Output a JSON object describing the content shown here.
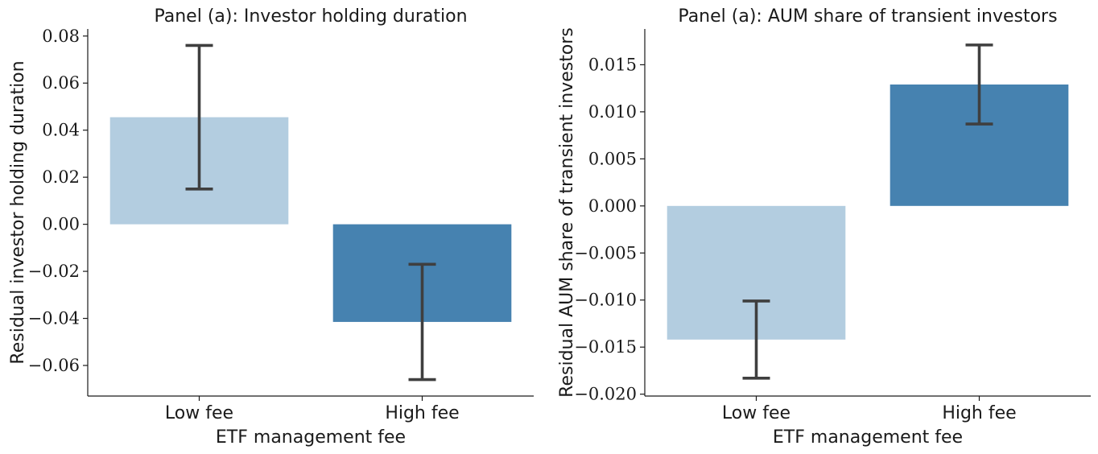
{
  "chart_data": [
    {
      "type": "bar",
      "title": "Panel (a): Investor holding duration",
      "xlabel": "ETF management fee",
      "ylabel": "Residual investor holding duration",
      "categories": [
        "Low fee",
        "High fee"
      ],
      "values": [
        0.0455,
        -0.0415
      ],
      "error_low": [
        0.015,
        -0.066
      ],
      "error_high": [
        0.076,
        -0.017
      ],
      "colors": [
        "#b3cde0",
        "#4682b0"
      ],
      "ylim": [
        -0.073,
        0.083
      ],
      "ticks": [
        -0.06,
        -0.04,
        -0.02,
        0.0,
        0.02,
        0.04,
        0.06,
        0.08
      ],
      "tick_labels": [
        "−0.06",
        "−0.04",
        "−0.02",
        "0.00",
        "0.02",
        "0.04",
        "0.06",
        "0.08"
      ],
      "grid": false
    },
    {
      "type": "bar",
      "title": "Panel (a): AUM share of transient investors",
      "xlabel": "ETF management fee",
      "ylabel": "Residual AUM share of transient investors",
      "categories": [
        "Low fee",
        "High fee"
      ],
      "values": [
        -0.0142,
        0.0129
      ],
      "error_low": [
        -0.0183,
        0.0087
      ],
      "error_high": [
        -0.0101,
        0.0171
      ],
      "colors": [
        "#b3cde0",
        "#4682b0"
      ],
      "ylim": [
        -0.0202,
        0.0188
      ],
      "ticks": [
        -0.02,
        -0.015,
        -0.01,
        -0.005,
        0.0,
        0.005,
        0.01,
        0.015
      ],
      "tick_labels": [
        "−0.020",
        "−0.015",
        "−0.010",
        "−0.005",
        "0.000",
        "0.005",
        "0.010",
        "0.015"
      ],
      "grid": false
    }
  ]
}
